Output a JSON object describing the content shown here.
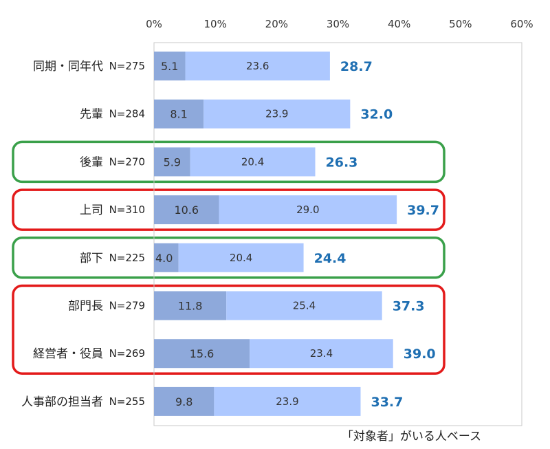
{
  "chart_data": {
    "type": "bar",
    "orientation": "horizontal",
    "stacked": true,
    "x_ticks": [
      "0%",
      "10%",
      "20%",
      "30%",
      "40%",
      "50%",
      "60%"
    ],
    "xlim": [
      0,
      60
    ],
    "categories": [
      "同期・同年代",
      "先輩",
      "後輩",
      "上司",
      "部下",
      "部門長",
      "経営者・役員",
      "人事部の担当者"
    ],
    "n_labels": [
      "N=275",
      "N=284",
      "N=270",
      "N=310",
      "N=225",
      "N=279",
      "N=269",
      "N=255"
    ],
    "series": [
      {
        "values": [
          5.1,
          8.1,
          5.9,
          10.6,
          4.0,
          11.8,
          15.6,
          9.8
        ],
        "color": "#8ea9db"
      },
      {
        "values": [
          23.6,
          23.9,
          20.4,
          29.0,
          20.4,
          25.4,
          23.4,
          23.9
        ],
        "color": "#adc8ff"
      }
    ],
    "totals": [
      "28.7",
      "32.0",
      "26.3",
      "39.7",
      "24.4",
      "37.3",
      "39.0",
      "33.7"
    ],
    "total_color": "#1f6fb2",
    "highlights": [
      {
        "rows": [
          2
        ],
        "color": "#3aa04a"
      },
      {
        "rows": [
          3
        ],
        "color": "#e31a1a"
      },
      {
        "rows": [
          4
        ],
        "color": "#3aa04a"
      },
      {
        "rows": [
          5,
          6
        ],
        "color": "#e31a1a"
      }
    ],
    "grid": false,
    "legend": "none"
  },
  "footnote": "「対象者」がいる人ベース"
}
